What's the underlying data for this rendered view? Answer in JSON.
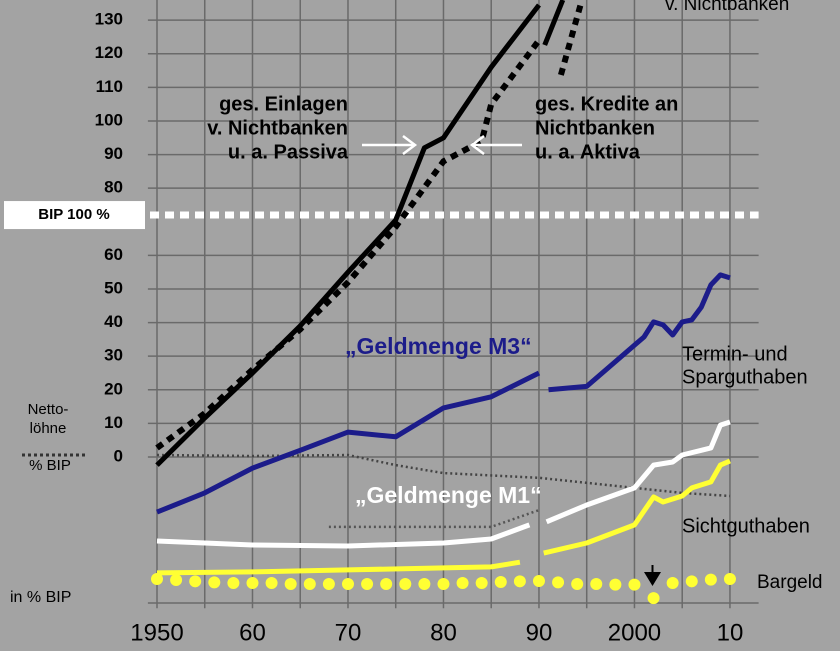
{
  "chart_data": {
    "type": "line",
    "xlim": [
      1948,
      2013
    ],
    "xticks": [
      1950,
      {
        "value": 1960,
        "label": "60"
      },
      {
        "value": 1970,
        "label": "70"
      },
      {
        "value": 1980,
        "label": "80"
      },
      {
        "value": 1990,
        "label": "90"
      },
      2000,
      {
        "value": 2010,
        "label": "10"
      }
    ],
    "xminor": [
      1955,
      1965,
      1975,
      1985,
      1995,
      2005
    ],
    "ylim": [
      -45,
      136
    ],
    "yticks": [
      0,
      10,
      20,
      30,
      40,
      50,
      60,
      80,
      90,
      100,
      110,
      120,
      130
    ],
    "grid": true,
    "reference_line": {
      "value": 72,
      "label": "BIP 100 %",
      "color": "#ffffff"
    },
    "series": [
      {
        "color": "#444444",
        "style": "dotted",
        "x": [
          1950,
          1960,
          1970,
          1975,
          1980,
          1990,
          2000,
          2005,
          2010
        ],
        "values": [
          0.6,
          0.3,
          0.6,
          -2.4,
          -4.8,
          -6.2,
          -9.2,
          -10.7,
          -11.6
        ]
      },
      {
        "color": "#555555",
        "style": "dotted",
        "x": [
          1968,
          1985,
          1990
        ],
        "values": [
          -20.8,
          -20.8,
          -15.8
        ]
      },
      {
        "color": "#000000",
        "style": "solid",
        "x": [
          1950,
          1955,
          1960,
          1965,
          1970,
          1975,
          1978,
          1980,
          1985,
          1990,
          1990.3,
          1990.6,
          1992.5
        ],
        "values": [
          -2.4,
          11.6,
          25,
          39,
          55,
          70.5,
          92,
          95,
          116,
          134.5,
          null,
          122.6,
          136
        ]
      },
      {
        "color": "#000000",
        "style": "dashed",
        "x": [
          1950,
          1955,
          1960,
          1965,
          1970,
          1975,
          1980,
          1984,
          1985,
          1990,
          1991,
          1992.3,
          1994.5
        ],
        "values": [
          2.7,
          13,
          26,
          38,
          52,
          68.5,
          88,
          94,
          105,
          124,
          null,
          113.7,
          136
        ]
      },
      {
        "color": "#1c1c8a",
        "style": "solid",
        "x": [
          1950,
          1955,
          1960,
          1965,
          1970,
          1975,
          1980,
          1985,
          1990,
          1990.5,
          1991,
          1995,
          2000,
          2001,
          2002,
          2003,
          2004,
          2005,
          2006,
          2007,
          2008,
          2009,
          2010
        ],
        "values": [
          -16.4,
          -10.7,
          -3.3,
          2,
          7.4,
          6,
          14.6,
          17.9,
          25,
          null,
          20,
          21,
          33.3,
          35.7,
          40.2,
          39.3,
          36.3,
          40.2,
          40.8,
          44.6,
          51.2,
          54.2,
          53.3
        ]
      },
      {
        "color": "#ffffff",
        "style": "solid",
        "x": [
          1950,
          1960,
          1970,
          1980,
          1985,
          1989,
          1990,
          1990.8,
          1995,
          2000,
          2002,
          2004,
          2005,
          2007,
          2008,
          2009,
          2010
        ],
        "values": [
          -25,
          -26.2,
          -26.5,
          -25.6,
          -24.4,
          -20.2,
          null,
          -19.3,
          -14.3,
          -9.2,
          -2.4,
          -1.5,
          0.6,
          2,
          2.7,
          9.5,
          10.4
        ]
      },
      {
        "color": "#ffff33",
        "style": "solid",
        "x": [
          1950,
          1960,
          1970,
          1980,
          1985,
          1988,
          1989,
          1990.5,
          1995,
          2000,
          2002,
          2003,
          2005,
          2006,
          2008,
          2009,
          2010
        ],
        "values": [
          -34.5,
          -34.2,
          -33.6,
          -33,
          -32.7,
          -31.3,
          null,
          -28.6,
          -25.6,
          -20.2,
          -11.9,
          -13.4,
          -11.6,
          -9.2,
          -7.4,
          -2.4,
          -1.2
        ]
      },
      {
        "color": "#ffff33",
        "style": "dots",
        "x": [
          1950,
          1952,
          1954,
          1956,
          1958,
          1960,
          1962,
          1964,
          1966,
          1968,
          1970,
          1972,
          1974,
          1976,
          1978,
          1980,
          1982,
          1984,
          1986,
          1988,
          1990,
          1992,
          1994,
          1996,
          1998,
          2000,
          2002,
          2004,
          2006,
          2008,
          2010
        ],
        "values": [
          -36.3,
          -36.6,
          -37,
          -37.3,
          -37.5,
          -37.5,
          -37.5,
          -37.8,
          -37.8,
          -37.8,
          -37.8,
          -37.8,
          -37.8,
          -37.8,
          -37.8,
          -37.8,
          -37.5,
          -37.5,
          -37.2,
          -37,
          -36.9,
          -37.3,
          -37.8,
          -37.8,
          -38,
          -38,
          -42,
          -37.5,
          -37,
          -36.5,
          -36.3
        ]
      }
    ],
    "annotations": [
      {
        "lines": [
          "v. Nichtbanken"
        ],
        "color": "#000000"
      },
      {
        "lines": [
          "ges. Einlagen",
          "v. Nichtbanken",
          "u. a. Passiva"
        ],
        "color": "#000000"
      },
      {
        "lines": [
          "ges. Kredite an",
          "Nichtbanken",
          "u. a. Aktiva"
        ],
        "color": "#000000"
      },
      {
        "lines": [
          "„Geldmenge M3“"
        ],
        "color": "#1c1c8a"
      },
      {
        "lines": [
          "„Geldmenge M1“"
        ],
        "color": "#ffffff"
      },
      {
        "lines": [
          "Termin- und",
          "Sparguthaben"
        ],
        "color": "#000000"
      },
      {
        "lines": [
          "Sichtguthaben"
        ],
        "color": "#000000"
      },
      {
        "lines": [
          "Bargeld"
        ],
        "color": "#000000"
      },
      {
        "lines": [
          "Netto-",
          "löhne"
        ],
        "color": "#000000"
      },
      {
        "lines": [
          "% BIP"
        ],
        "color": "#000000"
      },
      {
        "lines": [
          "in % BIP"
        ],
        "color": "#000000"
      }
    ]
  }
}
